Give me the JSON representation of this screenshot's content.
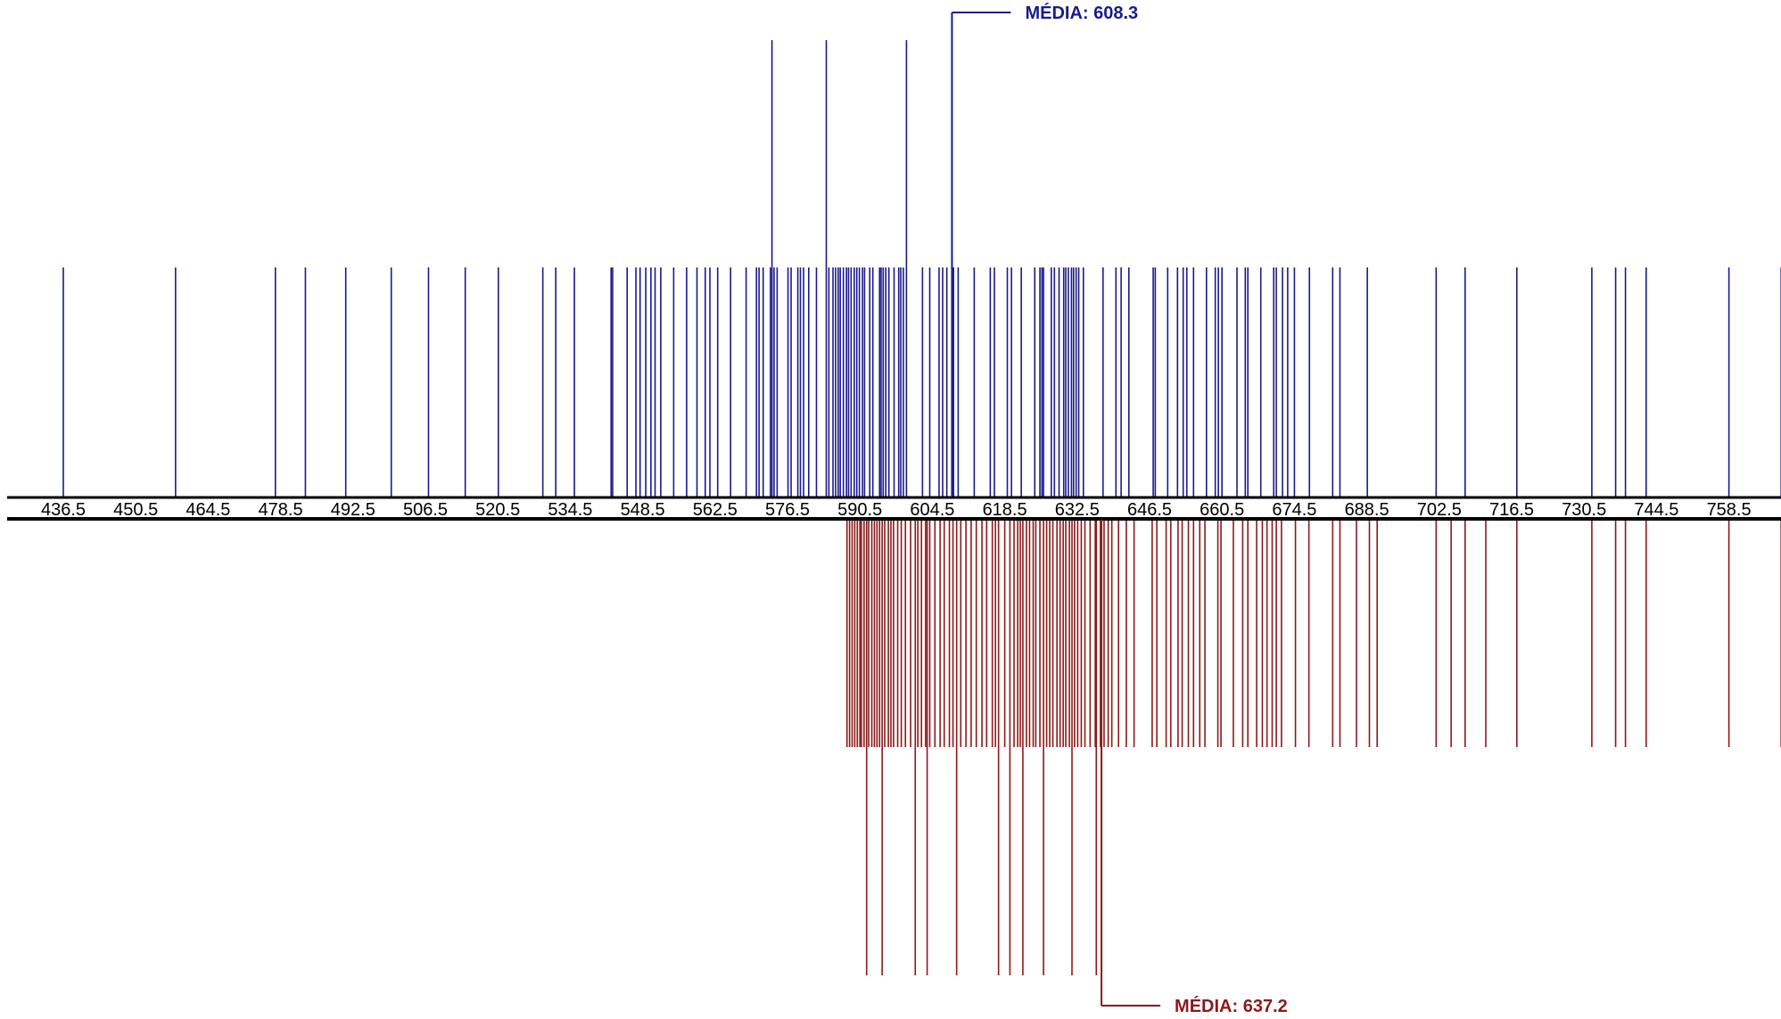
{
  "chart_data": {
    "type": "strip",
    "xlim": [
      436.5,
      770
    ],
    "ticks": [
      436.5,
      450.5,
      464.5,
      478.5,
      492.5,
      506.5,
      520.5,
      534.5,
      548.5,
      562.5,
      576.5,
      590.5,
      604.5,
      618.5,
      632.5,
      646.5,
      660.5,
      674.5,
      688.5,
      702.5,
      716.5,
      730.5,
      744.5,
      758.5
    ],
    "series": [
      {
        "color": "#1a1a8c",
        "direction": "up",
        "mean": 608.3,
        "mean_label": "MÉDIA: 608.3",
        "tall_values": [
          573.5,
          584,
          599.5
        ],
        "values": [
          436.5,
          458.2,
          477.5,
          483.3,
          491.1,
          499.9,
          507.1,
          514.2,
          520.6,
          529.2,
          531.7,
          535.3,
          542.4,
          542.7,
          545.5,
          547.2,
          548,
          549.1,
          550.1,
          550.9,
          552,
          554.5,
          557,
          559,
          560.6,
          561.5,
          563,
          565.5,
          568.5,
          570.5,
          571,
          571.8,
          573.2,
          573.9,
          574.5,
          576.6,
          577.2,
          578.5,
          579,
          579.6,
          580.6,
          582.1,
          584.5,
          585.3,
          585.8,
          586.3,
          586.7,
          587.3,
          587.9,
          588.3,
          588.8,
          589.4,
          589.9,
          590.4,
          591,
          591.4,
          592.4,
          593,
          594.3,
          594.6,
          595,
          595.5,
          596.1,
          597.1,
          598,
          598.4,
          598.9,
          602.6,
          604,
          605.8,
          606.5,
          607.3,
          608.6,
          609.5,
          612.6,
          615.7,
          616.5,
          619,
          619.8,
          621.7,
          624.3,
          625.3,
          625.7,
          626,
          627.5,
          628.1,
          629,
          629.9,
          630.3,
          630.8,
          631.4,
          631.8,
          632.3,
          632.8,
          633.7,
          637.5,
          640,
          641,
          642.5,
          647.2,
          647.6,
          650,
          651.9,
          653,
          653.7,
          655,
          657.5,
          659.2,
          659.8,
          660.5,
          663.4,
          665,
          665.5,
          668,
          670.5,
          671,
          672.2,
          673.2,
          674.5,
          677.4,
          681.9,
          683.3,
          688.6,
          701.9,
          707.5,
          717.5,
          732,
          736.6,
          738.5,
          742.5,
          758.5,
          768.6
        ]
      },
      {
        "color": "#8b1a1a",
        "direction": "down",
        "mean": 637.2,
        "mean_label": "MÉDIA: 637.2",
        "tall_values": [
          591.8,
          594.8,
          601.2,
          603.5,
          609.2,
          617.3,
          619.5,
          622,
          626,
          631.5,
          636.2
        ],
        "values": [
          588,
          588.5,
          589,
          589.5,
          590,
          590.5,
          590.8,
          591.3,
          592.2,
          592.8,
          593.3,
          593.8,
          594.3,
          595.3,
          596,
          596.5,
          597,
          597.8,
          598.5,
          599.3,
          600.3,
          601.7,
          602.4,
          603.2,
          604,
          605,
          606,
          606.8,
          607.8,
          608.5,
          610,
          611,
          612,
          613,
          614.1,
          615,
          616.1,
          616.7,
          618.5,
          620.3,
          621,
          621.5,
          622.7,
          623.3,
          624,
          624.5,
          625.3,
          626.6,
          627.2,
          627.8,
          628.6,
          629.2,
          629.8,
          630.3,
          631,
          632,
          632.6,
          633.3,
          634,
          635,
          636,
          637,
          637.7,
          638.5,
          639.2,
          640.5,
          642,
          643.5,
          647,
          647.9,
          649.7,
          650.6,
          652,
          652.8,
          654,
          655,
          656.2,
          657.2,
          659.7,
          660.3,
          662.7,
          664.5,
          665.5,
          667.2,
          668.3,
          669.2,
          670.2,
          671,
          672,
          674.7,
          677.3,
          681.9,
          683.3,
          686.5,
          689,
          690.5,
          701.9,
          704.8,
          707.5,
          711.5,
          717.5,
          732,
          736.6,
          738.5,
          742.5,
          758.5,
          768.6
        ]
      }
    ]
  }
}
